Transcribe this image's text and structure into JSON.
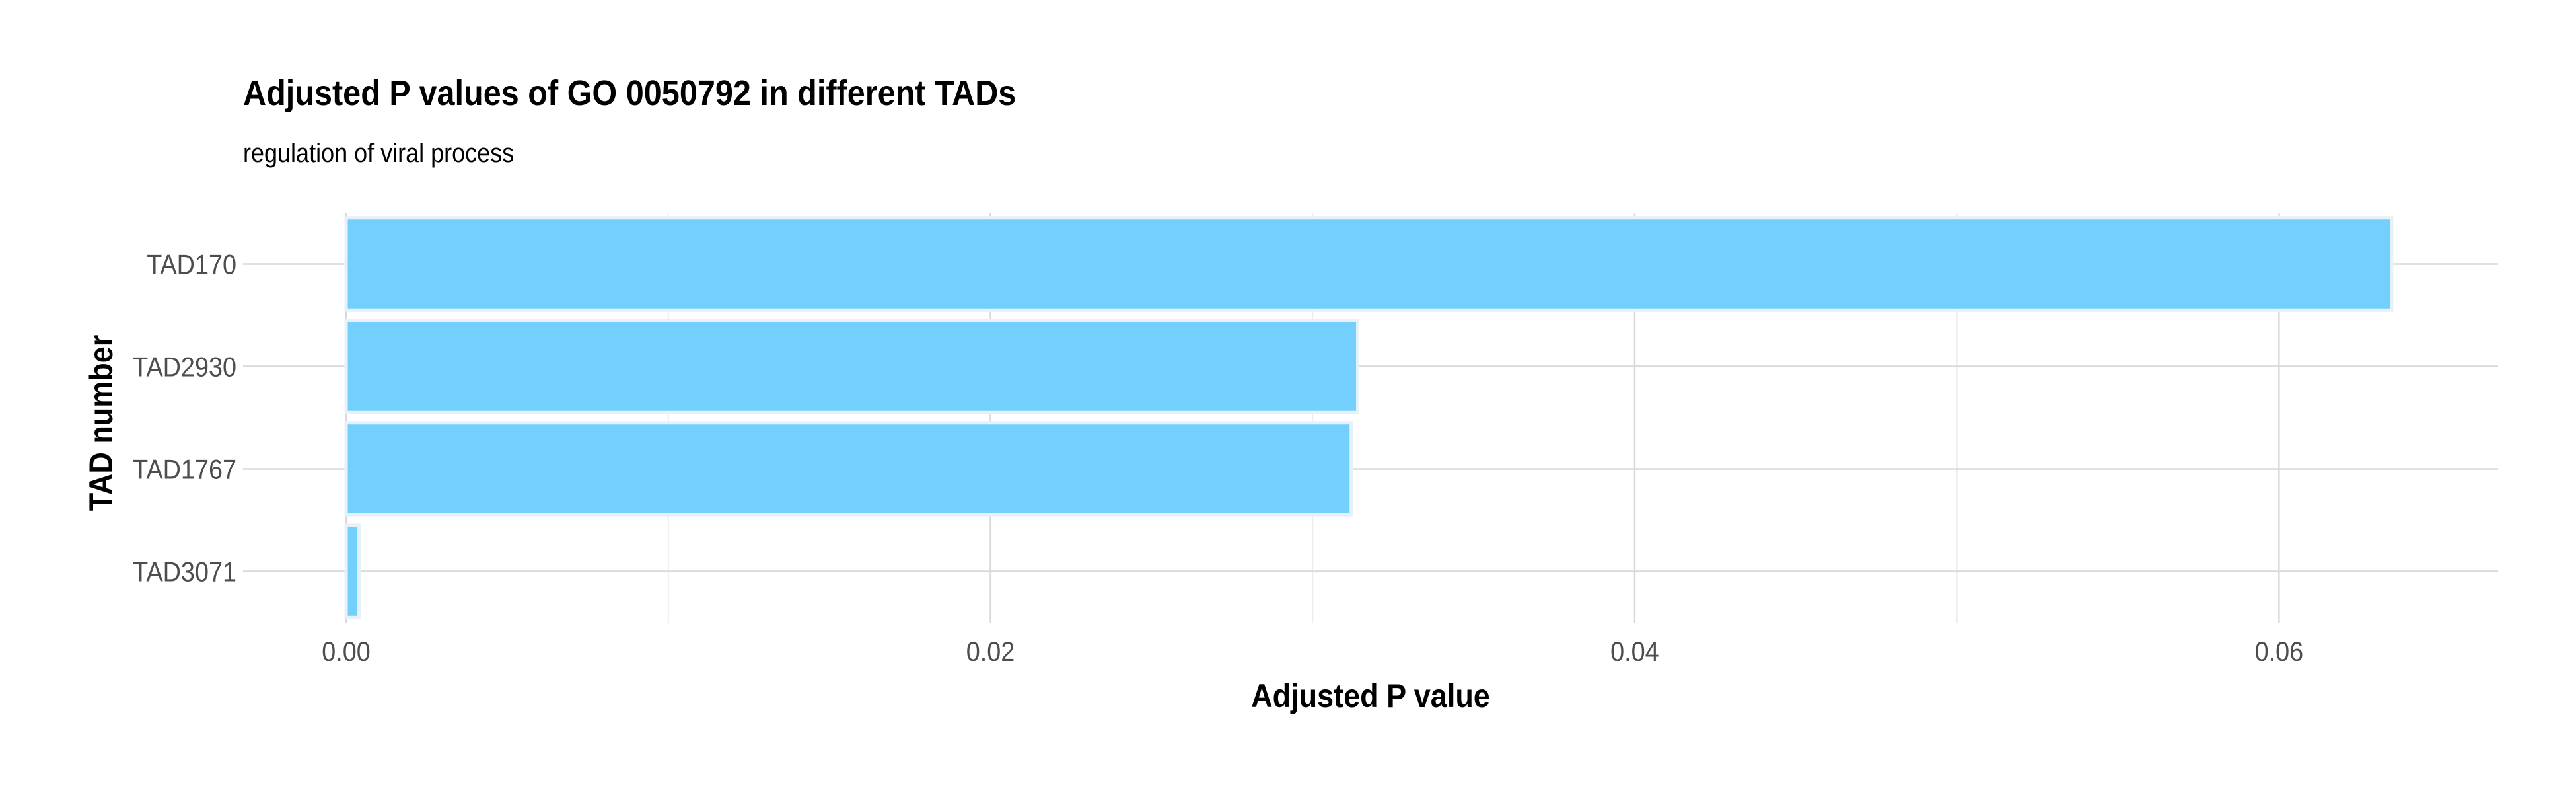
{
  "chart_data": {
    "type": "bar",
    "orientation": "horizontal",
    "title": "Adjusted P values of GO 0050792 in different TADs",
    "subtitle": "regulation of viral process",
    "xlabel": "Adjusted P value",
    "ylabel": "TAD number",
    "categories": [
      "TAD170",
      "TAD2930",
      "TAD1767",
      "TAD3071"
    ],
    "values": [
      0.0635,
      0.0314,
      0.0312,
      0.0004
    ],
    "xlim": [
      -0.0032,
      0.0668
    ],
    "xticks": [
      0,
      0.02,
      0.04,
      0.06
    ],
    "xtick_labels": [
      "0.00",
      "0.02",
      "0.04",
      "0.06"
    ],
    "grid": true,
    "legend": "none",
    "colors": {
      "bar_fill": "#73cffc",
      "bar_outline": "#e6f1f8",
      "grid_major": "#d9d9d9",
      "grid_minor": "#ececec"
    }
  }
}
